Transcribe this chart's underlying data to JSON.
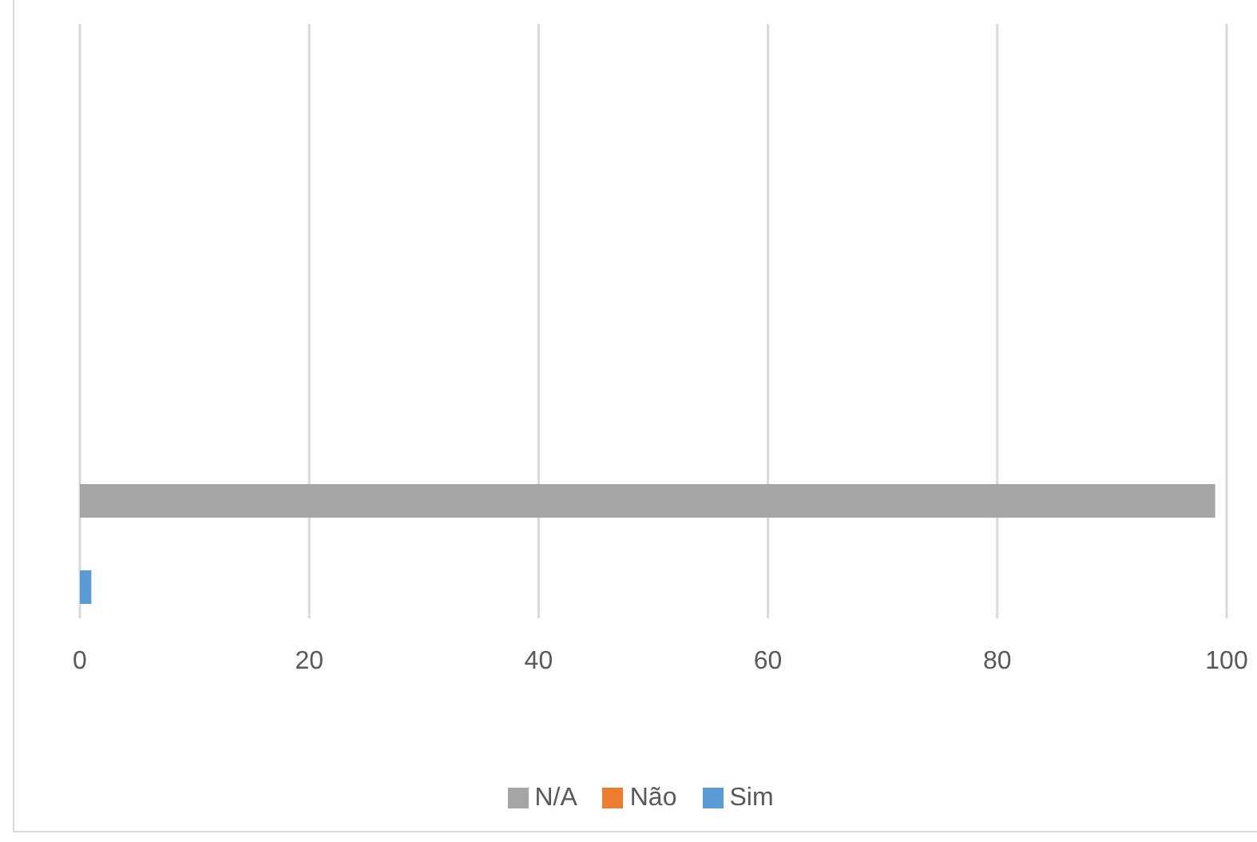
{
  "chart_data": {
    "type": "bar",
    "orientation": "horizontal",
    "categories": [
      null,
      null,
      null,
      null
    ],
    "series": [
      {
        "name": "N/A",
        "color": "#a5a5a5",
        "values": [
          null,
          null,
          null,
          99
        ]
      },
      {
        "name": "Não",
        "color": "#ed7d31",
        "values": [
          null,
          null,
          null,
          0
        ]
      },
      {
        "name": "Sim",
        "color": "#5b9bd5",
        "values": [
          null,
          null,
          null,
          1
        ]
      }
    ],
    "xlim": [
      0,
      100
    ],
    "xticks": [
      0,
      20,
      40,
      60,
      80,
      100
    ],
    "grid": "x",
    "legend": "bottom"
  }
}
